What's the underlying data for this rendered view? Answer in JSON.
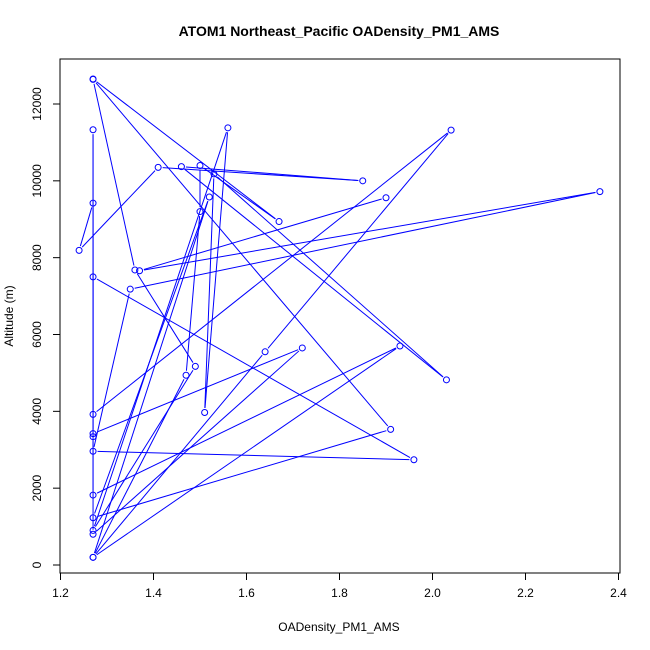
{
  "chart_data": {
    "type": "line",
    "title": "ATOM1 Northeast_Pacific OADensity_PM1_AMS",
    "xlabel": "OADensity_PM1_AMS",
    "ylabel": "Altitude (m)",
    "xlim": [
      1.2,
      2.4
    ],
    "ylim": [
      0,
      12000
    ],
    "x_ticks": [
      1.2,
      1.4,
      1.6,
      1.8,
      2.0,
      2.2,
      2.4
    ],
    "x_tick_labels": [
      "1.2",
      "1.4",
      "1.6",
      "1.8",
      "2.0",
      "2.2",
      "2.4"
    ],
    "y_ticks": [
      0,
      2000,
      4000,
      6000,
      8000,
      10000,
      12000
    ],
    "y_tick_labels": [
      "0",
      "2000",
      "4000",
      "6000",
      "8000",
      "10000",
      "12000"
    ],
    "grid": false,
    "colors": {
      "series": "#0000ff",
      "frame": "#000000"
    },
    "series": [
      {
        "marker": "open-circle",
        "points": [
          [
            1.27,
            12650
          ],
          [
            1.67,
            8940
          ],
          [
            1.5,
            10400
          ],
          [
            1.5,
            9200
          ],
          [
            1.47,
            4940
          ],
          [
            1.27,
            200
          ],
          [
            1.64,
            5550
          ],
          [
            2.04,
            11320
          ],
          [
            1.27,
            3920
          ],
          [
            1.27,
            11330
          ],
          [
            1.27,
            800
          ],
          [
            1.72,
            5650
          ],
          [
            1.27,
            3420
          ],
          [
            1.27,
            9420
          ],
          [
            1.24,
            8190
          ],
          [
            1.41,
            10350
          ],
          [
            1.85,
            10000
          ],
          [
            1.46,
            10370
          ],
          [
            2.03,
            4820
          ],
          [
            1.53,
            10180
          ],
          [
            1.51,
            3970
          ],
          [
            1.56,
            11380
          ],
          [
            1.27,
            900
          ],
          [
            1.49,
            5170
          ],
          [
            1.36,
            7680
          ],
          [
            1.27,
            12640
          ],
          [
            1.91,
            3530
          ],
          [
            1.27,
            1230
          ],
          [
            1.52,
            9580
          ],
          [
            1.27,
            200
          ],
          [
            1.93,
            5700
          ],
          [
            1.27,
            1820
          ],
          [
            1.27,
            3340
          ],
          [
            1.27,
            7500
          ],
          [
            1.96,
            2740
          ],
          [
            1.27,
            2960
          ],
          [
            1.35,
            7180
          ],
          [
            2.36,
            9720
          ],
          [
            1.37,
            7660
          ],
          [
            1.9,
            9560
          ]
        ]
      }
    ]
  }
}
